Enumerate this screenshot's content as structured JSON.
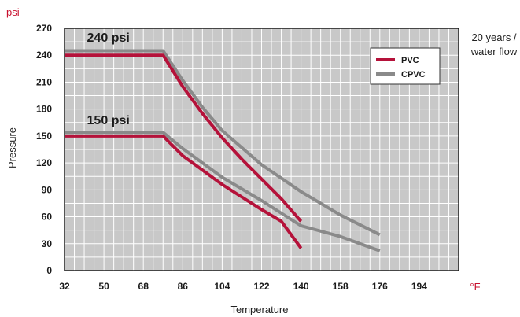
{
  "chart_data": {
    "type": "line",
    "y_unit": "psi",
    "x_unit": "°F",
    "xlabel": "Temperature",
    "ylabel": "Pressure",
    "note_lines": [
      "20 years /",
      "water flow"
    ],
    "x_ticks": [
      32,
      50,
      68,
      86,
      104,
      122,
      140,
      158,
      176,
      194
    ],
    "y_ticks": [
      0,
      30,
      60,
      90,
      120,
      150,
      180,
      210,
      240,
      270
    ],
    "xlim": [
      32,
      212
    ],
    "ylim": [
      0,
      270
    ],
    "grid": true,
    "legend_position": "top-right",
    "colors": {
      "PVC": "#b5123a",
      "CPVC": "#8a8a8a",
      "plot_bg": "#c8c8c8",
      "grid": "#ffffff"
    },
    "series": [
      {
        "name": "PVC",
        "points": [
          [
            32,
            240
          ],
          [
            77,
            240
          ],
          [
            86,
            205
          ],
          [
            95,
            175
          ],
          [
            104,
            148
          ],
          [
            113,
            124
          ],
          [
            122,
            102
          ],
          [
            131,
            80
          ],
          [
            140,
            55
          ]
        ]
      },
      {
        "name": "PVC",
        "points": [
          [
            32,
            150
          ],
          [
            77,
            150
          ],
          [
            86,
            128
          ],
          [
            95,
            112
          ],
          [
            104,
            96
          ],
          [
            113,
            82
          ],
          [
            122,
            68
          ],
          [
            131,
            55
          ],
          [
            140,
            25
          ]
        ]
      },
      {
        "name": "CPVC",
        "points": [
          [
            32,
            245
          ],
          [
            77,
            245
          ],
          [
            86,
            212
          ],
          [
            95,
            182
          ],
          [
            104,
            156
          ],
          [
            122,
            118
          ],
          [
            140,
            88
          ],
          [
            158,
            62
          ],
          [
            176,
            40
          ]
        ]
      },
      {
        "name": "CPVC",
        "points": [
          [
            32,
            154
          ],
          [
            77,
            154
          ],
          [
            86,
            136
          ],
          [
            95,
            120
          ],
          [
            104,
            104
          ],
          [
            122,
            78
          ],
          [
            140,
            50
          ],
          [
            158,
            38
          ],
          [
            176,
            22
          ]
        ]
      }
    ],
    "annotations": [
      {
        "text": "240 psi",
        "x": 52,
        "y": 255
      },
      {
        "text": "150 psi",
        "x": 52,
        "y": 163
      }
    ]
  }
}
